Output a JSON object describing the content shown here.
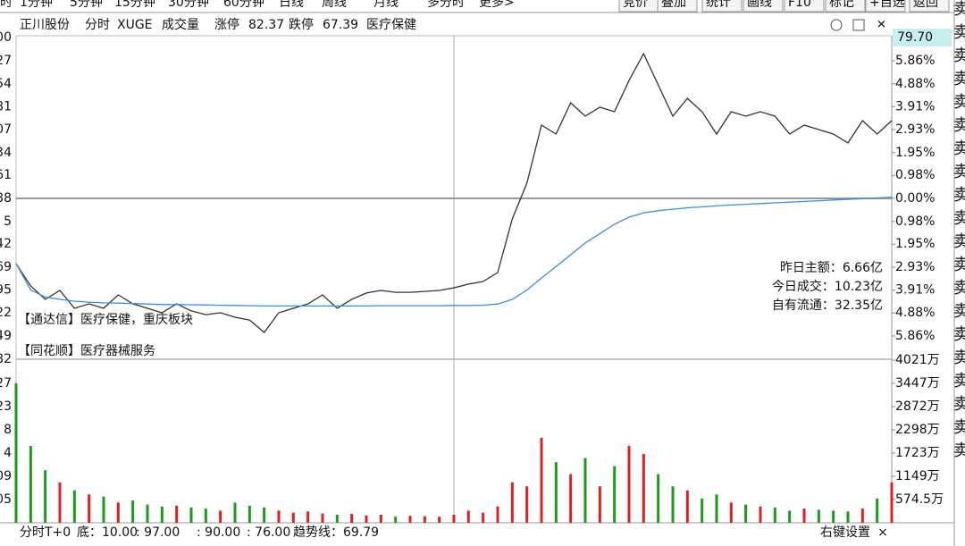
{
  "toolbar": {
    "left": [
      "分时",
      "1分钟",
      "5分钟",
      "15分钟",
      "30分钟",
      "60分钟",
      "日线",
      "周线",
      "月线",
      "多分时",
      "更多>"
    ],
    "right": [
      "竞价",
      "叠加",
      "统计",
      "画线",
      "F10",
      "标记",
      "+自选",
      "返回"
    ]
  },
  "header": {
    "stock": "正川股份",
    "mode": "分时",
    "indicator": "XUGE",
    "volume_label": "成交量",
    "limit_up_label": "涨停",
    "limit_up": "82.37",
    "limit_down_label": "跌停",
    "limit_down": "67.39",
    "sector": "医疗保健"
  },
  "current_price": "79.70",
  "info": [
    "昨日主额：6.66亿",
    "今日成交：10.23亿",
    "自有流通：32.35亿"
  ],
  "tags": [
    "【通达信】医疗保健，重庆板块",
    "【同花顺】医疗器械服务"
  ],
  "footer": {
    "name": "分时T+0",
    "items": [
      "底：10.00",
      ": 97.00",
      ": 90.00",
      ": 76.00",
      "趋势线：69.79"
    ],
    "settings": "右键设置",
    "close": "×"
  },
  "side_tab": "卖卖卖卖卖卖卖卖卖卖卖卖卖卖卖卖卖卖卖卖",
  "colors": {
    "up": "#e02020",
    "down": "#1e9a1e",
    "flat": "#111111"
  },
  "chart_data": [
    {
      "type": "line",
      "ylim": [
        -6.85,
        6.85
      ],
      "yticks": [
        {
          "value": 5.86,
          "label": "5.86%"
        },
        {
          "value": 4.88,
          "label": "4.88%"
        },
        {
          "value": 3.91,
          "label": "3.91%"
        },
        {
          "value": 2.93,
          "label": "2.93%"
        },
        {
          "value": 1.95,
          "label": "1.95%"
        },
        {
          "value": 0.98,
          "label": "0.98%"
        },
        {
          "value": 0,
          "label": "0.00%"
        },
        {
          "value": -0.98,
          "label": "0.98%"
        },
        {
          "value": -1.95,
          "label": "1.95%"
        },
        {
          "value": -2.93,
          "label": "2.93%"
        },
        {
          "value": -3.91,
          "label": "3.91%"
        },
        {
          "value": -4.88,
          "label": "4.88%"
        },
        {
          "value": -5.86,
          "label": "5.86%"
        }
      ],
      "y_left_ticks": [
        {
          "value": 6.85,
          "label": "00"
        },
        {
          "value": 5.86,
          "label": "27"
        },
        {
          "value": 4.88,
          "label": "54"
        },
        {
          "value": 3.91,
          "label": "81"
        },
        {
          "value": 2.93,
          "label": "07"
        },
        {
          "value": 1.95,
          "label": "34"
        },
        {
          "value": 0.98,
          "label": "61"
        },
        {
          "value": 0,
          "label": "88"
        },
        {
          "value": -0.98,
          "label": "5"
        },
        {
          "value": -1.95,
          "label": "42"
        },
        {
          "value": -2.93,
          "label": "69"
        },
        {
          "value": -3.91,
          "label": "95"
        },
        {
          "value": -4.88,
          "label": "22"
        },
        {
          "value": -5.86,
          "label": "49"
        },
        {
          "value": -6.85,
          "label": "82"
        }
      ],
      "series": [
        {
          "color": "#333333",
          "values": [
            -2.78,
            -3.73,
            -4.3,
            -3.92,
            -4.68,
            -4.49,
            -4.68,
            -4.11,
            -4.49,
            -4.68,
            -4.87,
            -4.49,
            -4.79,
            -4.95,
            -4.87,
            -5.06,
            -5.18,
            -5.71,
            -4.87,
            -4.68,
            -4.49,
            -4.11,
            -4.68,
            -4.3,
            -4.03,
            -3.92,
            -4.0,
            -4.0,
            -3.96,
            -3.92,
            -3.81,
            -3.65,
            -3.54,
            -3.16,
            -0.88,
            0.65,
            3.12,
            2.74,
            4.07,
            3.5,
            3.88,
            3.69,
            5.02,
            6.16,
            4.83,
            3.5,
            4.26,
            3.69,
            2.74,
            3.69,
            3.5,
            3.69,
            3.5,
            2.74,
            3.12,
            2.93,
            2.74,
            2.36,
            3.31,
            2.74,
            3.31
          ]
        },
        {
          "color": "#3a8ee0",
          "values": [
            -2.78,
            -3.9,
            -4.2,
            -4.3,
            -4.38,
            -4.42,
            -4.45,
            -4.46,
            -4.48,
            -4.5,
            -4.52,
            -4.52,
            -4.53,
            -4.54,
            -4.55,
            -4.56,
            -4.57,
            -4.58,
            -4.58,
            -4.58,
            -4.58,
            -4.58,
            -4.58,
            -4.58,
            -4.58,
            -4.57,
            -4.57,
            -4.57,
            -4.57,
            -4.57,
            -4.56,
            -4.56,
            -4.55,
            -4.5,
            -4.3,
            -3.9,
            -3.4,
            -2.9,
            -2.4,
            -1.9,
            -1.5,
            -1.1,
            -0.8,
            -0.62,
            -0.52,
            -0.46,
            -0.4,
            -0.36,
            -0.32,
            -0.28,
            -0.25,
            -0.22,
            -0.19,
            -0.16,
            -0.13,
            -0.1,
            -0.07,
            -0.04,
            -0.01,
            0.02,
            0.05
          ]
        }
      ]
    },
    {
      "type": "bar",
      "ylim": [
        0,
        4021
      ],
      "yticks": [
        {
          "value": 574.5,
          "label": "574.5万"
        },
        {
          "value": 1149,
          "label": "1149万"
        },
        {
          "value": 1723,
          "label": "1723万"
        },
        {
          "value": 2298,
          "label": "2298万"
        },
        {
          "value": 2872,
          "label": "2872万"
        },
        {
          "value": 3447,
          "label": "3447万"
        },
        {
          "value": 4021,
          "label": "4021万"
        }
      ],
      "y_left_ticks": [
        {
          "value": 574.5,
          "label": "05"
        },
        {
          "value": 1149,
          "label": "09"
        },
        {
          "value": 1723,
          "label": "4"
        },
        {
          "value": 2298,
          "label": "8"
        },
        {
          "value": 2872,
          "label": "23"
        },
        {
          "value": 3447,
          "label": "27"
        }
      ],
      "values": [
        3450,
        1900,
        1300,
        1000,
        800,
        700,
        650,
        500,
        550,
        450,
        400,
        420,
        380,
        350,
        300,
        500,
        420,
        380,
        300,
        250,
        280,
        230,
        200,
        220,
        180,
        200,
        150,
        170,
        160,
        150,
        200,
        300,
        250,
        400,
        1000,
        900,
        2100,
        1500,
        1200,
        1600,
        900,
        1400,
        1900,
        1700,
        1200,
        900,
        800,
        600,
        700,
        500,
        450,
        400,
        380,
        300,
        350,
        320,
        300,
        280,
        350,
        600,
        1000
      ]
    }
  ]
}
